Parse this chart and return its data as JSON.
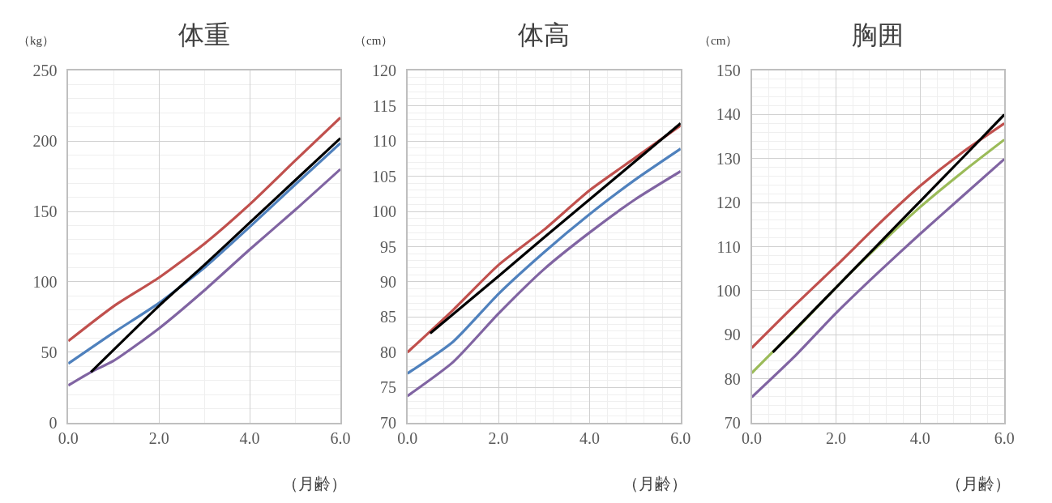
{
  "chart_data": [
    {
      "type": "line",
      "title": "体重",
      "ylabel": "（kg）",
      "xlabel": "（月齢）",
      "grid": true,
      "marker": "none",
      "line_style": "solid",
      "xlim": [
        0,
        6
      ],
      "xticks": [
        {
          "value": 0,
          "label": "0.0"
        },
        {
          "value": 2,
          "label": "2.0"
        },
        {
          "value": 4,
          "label": "4.0"
        },
        {
          "value": 6,
          "label": "6.0"
        }
      ],
      "ylim": [
        0,
        250
      ],
      "yticks": [
        0,
        50,
        100,
        150,
        200,
        250
      ],
      "x": [
        0,
        1,
        2,
        3,
        4,
        5,
        6
      ],
      "series": [
        {
          "color": "#c0504d",
          "values": [
            58,
            82.7,
            103,
            127,
            155,
            186,
            216.6
          ]
        },
        {
          "color": "#4f81bd",
          "values": [
            42,
            64,
            85,
            110,
            139,
            169,
            198.5
          ]
        },
        {
          "color": "#8064a2",
          "x": [
            0,
            0.5,
            1,
            2,
            3,
            4,
            5,
            6
          ],
          "values": [
            26.5,
            36,
            44,
            67,
            94,
            123,
            151,
            180
          ]
        },
        {
          "color": "#000000",
          "x": [
            0.5,
            2,
            3,
            4,
            5,
            6
          ],
          "values": [
            36,
            83,
            112,
            142,
            172,
            202
          ]
        }
      ]
    },
    {
      "type": "line",
      "title": "体高",
      "ylabel": "（cm）",
      "xlabel": "（月齢）",
      "grid": true,
      "marker": "none",
      "line_style": "solid",
      "xlim": [
        0,
        6
      ],
      "xticks": [
        {
          "value": 0,
          "label": "0.0"
        },
        {
          "value": 2,
          "label": "2.0"
        },
        {
          "value": 4,
          "label": "4.0"
        },
        {
          "value": 6,
          "label": "6.0"
        }
      ],
      "ylim": [
        70,
        120
      ],
      "yticks": [
        70,
        75,
        80,
        85,
        90,
        95,
        100,
        105,
        110,
        115,
        120
      ],
      "x": [
        0,
        1,
        2,
        3,
        4,
        5,
        6
      ],
      "series": [
        {
          "color": "#c0504d",
          "values": [
            80,
            86,
            92.4,
            97.4,
            103,
            107.6,
            112.2
          ]
        },
        {
          "color": "#4f81bd",
          "values": [
            77,
            81.5,
            88.3,
            94.2,
            99.6,
            104.5,
            108.9
          ]
        },
        {
          "color": "#8064a2",
          "values": [
            73.8,
            78.6,
            85.5,
            91.8,
            97,
            101.7,
            105.7
          ]
        },
        {
          "color": "#000000",
          "x": [
            0.5,
            2,
            3,
            4,
            5,
            6
          ],
          "values": [
            82.7,
            90.8,
            96.3,
            101.7,
            107.1,
            112.5
          ]
        }
      ]
    },
    {
      "type": "line",
      "title": "胸囲",
      "ylabel": "（cm）",
      "xlabel": "（月齢）",
      "grid": true,
      "marker": "none",
      "line_style": "solid",
      "xlim": [
        0,
        6
      ],
      "xticks": [
        {
          "value": 0,
          "label": "0.0"
        },
        {
          "value": 2,
          "label": "2.0"
        },
        {
          "value": 4,
          "label": "4.0"
        },
        {
          "value": 6,
          "label": "6.0"
        }
      ],
      "ylim": [
        70,
        150
      ],
      "yticks": [
        70,
        80,
        90,
        100,
        110,
        120,
        130,
        140,
        150
      ],
      "x": [
        0,
        1,
        2,
        3,
        4,
        5,
        6
      ],
      "series": [
        {
          "color": "#c0504d",
          "values": [
            87,
            96.5,
            105.6,
            115,
            123.8,
            131.4,
            138
          ]
        },
        {
          "color": "#9bbb59",
          "x": [
            0,
            0.5,
            1,
            2,
            3,
            4,
            5,
            6
          ],
          "values": [
            81.3,
            86.1,
            90.7,
            100.7,
            110.1,
            119,
            126.9,
            134.3
          ]
        },
        {
          "color": "#8064a2",
          "values": [
            75.8,
            84.9,
            94.9,
            104.1,
            112.9,
            121.4,
            129.9
          ]
        },
        {
          "color": "#000000",
          "x": [
            0.5,
            2,
            3,
            4,
            5,
            6
          ],
          "values": [
            86,
            100.7,
            110.5,
            120.3,
            130.1,
            140
          ]
        }
      ]
    }
  ]
}
